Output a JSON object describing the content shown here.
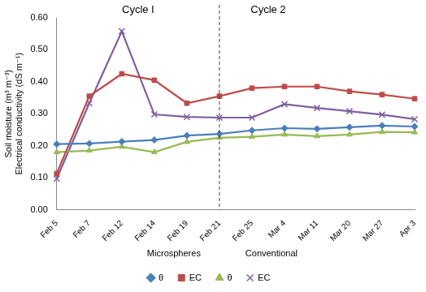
{
  "chart_data": {
    "type": "line",
    "y_label": [
      "Soil moisture (m³ m⁻³)",
      "Electrical conductivity (dS m⁻¹)"
    ],
    "categories": [
      "Feb 5",
      "Feb 7",
      "Feb 12",
      "Feb 14",
      "Feb 19",
      "Feb 21",
      "Feb 25",
      "Mar 4",
      "Mar 11",
      "Mar 20",
      "Mar 27",
      "Apr 3"
    ],
    "series": [
      {
        "name": "θ",
        "color": "#4a7ebb",
        "marker": "diamond",
        "values": [
          0.205,
          0.207,
          0.213,
          0.218,
          0.232,
          0.237,
          0.248,
          0.255,
          0.253,
          0.258,
          0.263,
          0.26
        ]
      },
      {
        "name": "EC",
        "color": "#be4b48",
        "marker": "square",
        "values": [
          0.113,
          0.355,
          0.425,
          0.405,
          0.333,
          0.355,
          0.38,
          0.385,
          0.385,
          0.37,
          0.36,
          0.347
        ]
      },
      {
        "name": "θ",
        "color": "#98b954",
        "marker": "triangle",
        "values": [
          0.18,
          0.185,
          0.197,
          0.18,
          0.212,
          0.225,
          0.228,
          0.235,
          0.23,
          0.235,
          0.243,
          0.242
        ]
      },
      {
        "name": "EC",
        "color": "#7d60a0",
        "marker": "x",
        "values": [
          0.097,
          0.333,
          0.558,
          0.298,
          0.29,
          0.288,
          0.288,
          0.33,
          0.318,
          0.308,
          0.297,
          0.283
        ]
      }
    ],
    "annotations": [
      "Cycle I",
      "Cycle 2",
      "Microspheres",
      "Conventional"
    ],
    "ylim": [
      0,
      0.6
    ],
    "yticks": [
      {
        "value": 0,
        "label": "0.00"
      },
      {
        "value": 0.1,
        "label": "0.10"
      },
      {
        "value": 0.2,
        "label": "0.20"
      },
      {
        "value": 0.3,
        "label": "0.30"
      },
      {
        "value": 0.4,
        "label": "0.40"
      },
      {
        "value": 0.5,
        "label": "0.50"
      },
      {
        "value": 0.6,
        "label": "0.60"
      }
    ],
    "grid": false,
    "legend": "bottom"
  }
}
